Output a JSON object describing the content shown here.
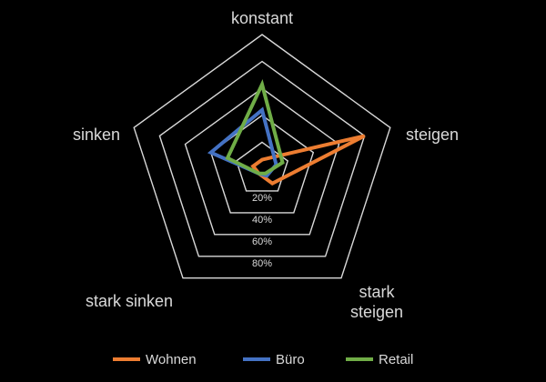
{
  "chart_data": {
    "type": "radar",
    "axes": [
      "konstant",
      "steigen",
      "stark steigen",
      "stark sinken",
      "sinken"
    ],
    "axis_label_lines": [
      [
        "konstant"
      ],
      [
        "steigen"
      ],
      [
        "stark",
        "steigen"
      ],
      [
        "stark sinken"
      ],
      [
        "sinken"
      ]
    ],
    "rlim": [
      0,
      100
    ],
    "ticks": [
      20,
      40,
      60,
      80,
      100
    ],
    "tick_labels": [
      "20%",
      "40%",
      "60%",
      "80%",
      ""
    ],
    "grid": true,
    "legend_position": "bottom",
    "series": [
      {
        "name": "Wohnen",
        "color": "#ed7d31",
        "values": [
          7,
          80,
          13,
          4,
          7
        ]
      },
      {
        "name": "Büro",
        "color": "#4472c4",
        "values": [
          44,
          11,
          6,
          4,
          40
        ]
      },
      {
        "name": "Retail",
        "color": "#70ad47",
        "values": [
          63,
          16,
          4,
          4,
          27
        ]
      }
    ]
  },
  "colors": {
    "background": "#000000",
    "grid": "#d9d9d9",
    "text": "#d9d9d9"
  }
}
